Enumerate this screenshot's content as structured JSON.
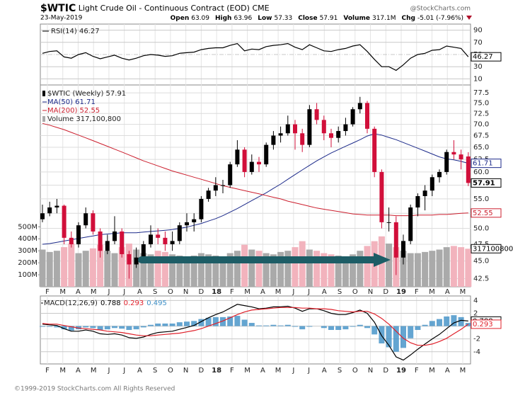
{
  "header": {
    "symbol": "$WTIC",
    "name": "Light Crude Oil - Continuous Contract (EOD)",
    "exchange": "CME",
    "date": "23-May-2019",
    "quote": [
      {
        "label": "Open",
        "value": "63.09"
      },
      {
        "label": "High",
        "value": "63.96"
      },
      {
        "label": "Low",
        "value": "57.33"
      },
      {
        "label": "Close",
        "value": "57.91"
      },
      {
        "label": "Volume",
        "value": "317.1M"
      },
      {
        "label": "Chg",
        "value": "-5.01 (-7.96%)"
      }
    ]
  },
  "watermark": "@StockCharts.com",
  "footer": "©1999-2019 StockCharts.com All Rights Reserved",
  "chart_data": [
    {
      "type": "line",
      "series": [
        {
          "name": "RSI(14) 46.27",
          "color": "#000000",
          "values": [
            52,
            55,
            56,
            46,
            44,
            50,
            53,
            47,
            43,
            46,
            49,
            44,
            41,
            44,
            48,
            50,
            49,
            47,
            48,
            52,
            53,
            54,
            58,
            60,
            61,
            61,
            65,
            68,
            56,
            59,
            58,
            63,
            65,
            66,
            68,
            62,
            58,
            66,
            61,
            56,
            55,
            58,
            60,
            64,
            66,
            55,
            42,
            30,
            30,
            24,
            33,
            44,
            50,
            52,
            57,
            58,
            64,
            62,
            60,
            46.27
          ]
        }
      ],
      "last_label": "46.27",
      "ylim": [
        0,
        100
      ],
      "yticks": [
        90,
        70,
        50,
        30,
        10
      ],
      "grid": true
    },
    {
      "type": "candlestick",
      "title": "$WTIC (Weekly) 57.91",
      "log": true,
      "ylim": [
        41.4,
        79.5
      ],
      "yticks": [
        {
          "value": 42.5,
          "label": "42.5"
        },
        {
          "value": 45,
          "label": "45.0"
        },
        {
          "value": 47.5,
          "label": "47.5"
        },
        {
          "value": 50,
          "label": "50.0"
        },
        {
          "value": 52.5,
          "label": "52.5"
        },
        {
          "value": 55,
          "label": "55.0"
        },
        {
          "value": 57.5,
          "label": "57.5"
        },
        {
          "value": 60,
          "label": "60.0"
        },
        {
          "value": 62.5,
          "label": "62.5"
        },
        {
          "value": 65,
          "label": "65.0"
        },
        {
          "value": 67.5,
          "label": "67.5"
        },
        {
          "value": 70,
          "label": "70.0"
        },
        {
          "value": 72.5,
          "label": "72.5"
        },
        {
          "value": 75,
          "label": "75.0"
        },
        {
          "value": 77.5,
          "label": "77.5"
        }
      ],
      "grid": true,
      "up_color": "#000000",
      "down_color": "#d10f3a",
      "x_labels": [
        "F",
        "M",
        "A",
        "M",
        "J",
        "J",
        "A",
        "S",
        "O",
        "N",
        "D",
        "18",
        "F",
        "M",
        "A",
        "M",
        "J",
        "J",
        "A",
        "S",
        "O",
        "N",
        "D",
        "19",
        "F",
        "M",
        "A",
        "M"
      ],
      "open": [
        51.5,
        52.5,
        53.5,
        53.8,
        48.5,
        47.5,
        50.5,
        52.5,
        49.5,
        46.5,
        48,
        49.5,
        46,
        44.5,
        45.5,
        47.5,
        49,
        48.5,
        47.5,
        48,
        50.5,
        51,
        51.5,
        55,
        56.5,
        57.5,
        57.5,
        61.5,
        64.5,
        60,
        62,
        61.5,
        65.5,
        67.5,
        68,
        70,
        68,
        65.5,
        73.5,
        71,
        68,
        67,
        68.5,
        70,
        73.5,
        75,
        69,
        60,
        51,
        51,
        45.5,
        48,
        53.5,
        55.5,
        56.5,
        59,
        60,
        64,
        63.5,
        63.09
      ],
      "high": [
        54,
        54.5,
        55,
        54,
        49.5,
        51,
        53.5,
        53,
        50,
        49,
        52,
        50,
        46.5,
        47,
        48,
        50.5,
        50,
        49.5,
        49.5,
        51,
        52.5,
        52.5,
        55.5,
        57,
        59,
        58.5,
        62,
        66.5,
        65,
        63.5,
        63,
        66,
        68.5,
        69.5,
        72,
        71,
        69,
        74.5,
        75,
        72,
        69,
        69.5,
        71.5,
        74,
        76.5,
        75.5,
        69.5,
        60.5,
        53.5,
        52,
        49,
        54,
        56,
        57.5,
        59.5,
        60.5,
        64.5,
        66.5,
        64.5,
        63.96
      ],
      "low": [
        51,
        52,
        52.5,
        47.5,
        47,
        47,
        50,
        49,
        45.5,
        46,
        47.5,
        45.5,
        42.5,
        44,
        45,
        47,
        47.5,
        46.5,
        46.5,
        47.5,
        49.5,
        49.5,
        51,
        54.5,
        55.5,
        56,
        57,
        61,
        59,
        59.5,
        60,
        61,
        64.5,
        66,
        67.5,
        64.5,
        64,
        65,
        70,
        66.5,
        65,
        66,
        67.5,
        69.5,
        72.5,
        68,
        59,
        50,
        49.5,
        43,
        44.5,
        47.5,
        52,
        53,
        55.5,
        58,
        59.5,
        62.5,
        60.5,
        57.33
      ],
      "close": [
        52.5,
        53.5,
        53.8,
        48.5,
        47.5,
        50.5,
        52.5,
        49.5,
        46.5,
        48,
        49.5,
        46,
        44.5,
        45.5,
        47.5,
        49,
        48.5,
        47.5,
        48,
        50.5,
        51,
        51.5,
        55,
        56.5,
        57.5,
        57.5,
        61.5,
        64.5,
        60,
        62,
        61.5,
        65.5,
        67.5,
        68,
        70,
        68,
        65.5,
        73.5,
        71,
        68,
        67,
        68.5,
        70,
        73.5,
        75,
        69,
        60,
        51,
        51,
        45.5,
        48,
        53.5,
        55.5,
        56.5,
        59,
        60,
        64,
        63.5,
        62.5,
        57.91
      ],
      "last_label": "57.91",
      "series": [
        {
          "name": "MA(50) 61.71",
          "color": "#1c2a8a",
          "last_label": "61.71",
          "values": [
            47.5,
            47.6,
            47.8,
            48,
            48.2,
            48.4,
            48.6,
            48.8,
            49,
            49.1,
            49.2,
            49.3,
            49.3,
            49.3,
            49.4,
            49.5,
            49.6,
            49.7,
            49.8,
            50,
            50.2,
            50.5,
            50.8,
            51.2,
            51.6,
            52.1,
            52.7,
            53.3,
            54,
            54.7,
            55.4,
            56.1,
            56.9,
            57.7,
            58.6,
            59.5,
            60.4,
            61.3,
            62.2,
            63,
            63.8,
            64.5,
            65.2,
            65.9,
            66.6,
            67.4,
            67.9,
            67.6,
            67.1,
            66.6,
            66,
            65.4,
            64.8,
            64.2,
            63.6,
            63,
            62.6,
            62.4,
            62.1,
            61.71
          ]
        },
        {
          "name": "MA(200) 52.55",
          "color": "#cc1f2e",
          "last_label": "52.55",
          "values": [
            70.2,
            69.8,
            69.3,
            68.8,
            68.2,
            67.6,
            67,
            66.4,
            65.8,
            65.2,
            64.6,
            64,
            63.4,
            62.8,
            62.2,
            61.7,
            61.2,
            60.7,
            60.2,
            59.8,
            59.4,
            59,
            58.6,
            58.2,
            57.8,
            57.4,
            57.1,
            56.8,
            56.5,
            56.2,
            55.9,
            55.6,
            55.3,
            55,
            54.6,
            54.3,
            54,
            53.7,
            53.4,
            53.2,
            53,
            52.8,
            52.6,
            52.4,
            52.3,
            52.2,
            52.2,
            52.2,
            52.2,
            52.1,
            52.1,
            52.1,
            52.2,
            52.2,
            52.2,
            52.3,
            52.3,
            52.4,
            52.5,
            52.55
          ]
        }
      ],
      "volume": {
        "name": "Volume 317,100,800",
        "last_label": "317100800",
        "up_color": "#aaaaaa",
        "down_color": "#f2b3bd",
        "ylim": [
          0,
          1682
        ],
        "yticks": [
          {
            "value": 100,
            "label": "100M"
          },
          {
            "value": 200,
            "label": "200M"
          },
          {
            "value": 300,
            "label": "300M"
          },
          {
            "value": 400,
            "label": "400M"
          },
          {
            "value": 500,
            "label": "500M"
          }
        ],
        "values": [
          310,
          290,
          300,
          330,
          360,
          280,
          300,
          320,
          350,
          300,
          280,
          330,
          360,
          310,
          280,
          270,
          300,
          290,
          270,
          260,
          250,
          260,
          280,
          270,
          260,
          250,
          280,
          300,
          350,
          310,
          300,
          280,
          270,
          290,
          300,
          330,
          380,
          310,
          300,
          280,
          270,
          260,
          250,
          270,
          300,
          340,
          380,
          420,
          360,
          330,
          300,
          280,
          280,
          290,
          300,
          310,
          330,
          340,
          330,
          317.1
        ]
      }
    },
    {
      "type": "line",
      "legend": "MACD(12,26,9)",
      "ylim": [
        -5.9,
        4.7
      ],
      "yticks": [
        4,
        2,
        0,
        -2,
        -4
      ],
      "series": [
        {
          "name": "0.788",
          "color": "#000000",
          "last_label": "0.788",
          "values": [
            0.3,
            0.2,
            0.1,
            -0.4,
            -0.8,
            -0.8,
            -0.6,
            -0.8,
            -1.2,
            -1.3,
            -1.2,
            -1.4,
            -1.8,
            -1.9,
            -1.7,
            -1.3,
            -1.0,
            -0.9,
            -0.8,
            -0.5,
            -0.2,
            0.1,
            0.7,
            1.3,
            1.8,
            2.2,
            2.8,
            3.4,
            3.2,
            3.0,
            2.7,
            2.8,
            3.0,
            3.0,
            3.1,
            2.8,
            2.3,
            2.7,
            2.7,
            2.4,
            2.0,
            1.8,
            1.8,
            2.1,
            2.5,
            2.0,
            0.6,
            -1.5,
            -3.0,
            -4.8,
            -5.3,
            -4.5,
            -3.6,
            -2.8,
            -2.0,
            -1.3,
            -0.4,
            0.5,
            0.9,
            0.788
          ]
        },
        {
          "name": "0.293",
          "color": "#e0202a",
          "last_label": "0.293",
          "values": [
            0.4,
            0.3,
            0.3,
            0.1,
            -0.1,
            -0.3,
            -0.4,
            -0.5,
            -0.6,
            -0.8,
            -0.9,
            -1.0,
            -1.2,
            -1.4,
            -1.5,
            -1.5,
            -1.4,
            -1.3,
            -1.2,
            -1.1,
            -0.9,
            -0.7,
            -0.4,
            0.0,
            0.4,
            0.8,
            1.3,
            1.8,
            2.2,
            2.5,
            2.6,
            2.7,
            2.8,
            2.9,
            2.9,
            2.9,
            2.8,
            2.8,
            2.7,
            2.7,
            2.6,
            2.4,
            2.3,
            2.2,
            2.3,
            2.3,
            1.9,
            1.2,
            0.3,
            -0.8,
            -1.9,
            -2.6,
            -3.0,
            -3.0,
            -2.8,
            -2.4,
            -1.9,
            -1.2,
            -0.5,
            0.293
          ]
        }
      ],
      "histogram": {
        "name": "0.495",
        "color": "#3d8fc6",
        "values": [
          -0.1,
          -0.1,
          -0.2,
          -0.5,
          -0.7,
          -0.5,
          -0.2,
          -0.3,
          -0.6,
          -0.5,
          -0.3,
          -0.4,
          -0.6,
          -0.5,
          -0.2,
          0.2,
          0.4,
          0.4,
          0.4,
          0.6,
          0.7,
          0.8,
          1.1,
          1.3,
          1.4,
          1.4,
          1.5,
          1.6,
          1.0,
          0.5,
          0.1,
          0.1,
          0.2,
          0.1,
          0.2,
          -0.1,
          -0.5,
          -0.1,
          0.0,
          -0.3,
          -0.6,
          -0.6,
          -0.5,
          -0.1,
          0.2,
          -0.3,
          -1.3,
          -2.7,
          -3.3,
          -4.0,
          -3.4,
          -1.9,
          -0.6,
          0.2,
          0.8,
          1.1,
          1.5,
          1.7,
          1.4,
          0.495
        ]
      },
      "grid": true
    }
  ]
}
